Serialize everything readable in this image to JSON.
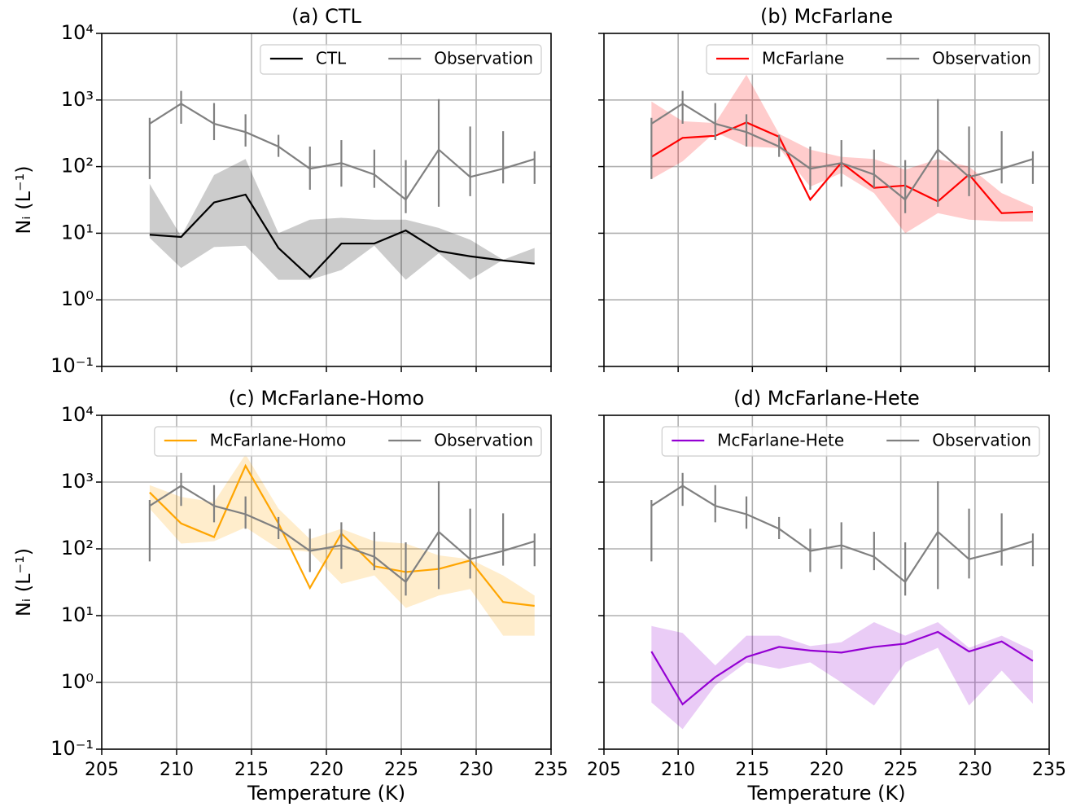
{
  "chart_data": [
    {
      "type": "line",
      "title": "(a) CTL",
      "ylabel": "Nᵢ (L⁻¹)",
      "yscale": "log",
      "grid": true,
      "legend": "upper right",
      "xtick_labels": false,
      "xlim": [
        205,
        235
      ],
      "xticks": [
        205,
        210,
        215,
        220,
        225,
        230,
        235
      ],
      "ylim": [
        0.1,
        10000
      ],
      "yticks": [
        {
          "value": 0.1,
          "label": "10⁻¹"
        },
        {
          "value": 1,
          "label": "10⁰"
        },
        {
          "value": 10,
          "label": "10¹"
        },
        {
          "value": 100,
          "label": "10²"
        },
        {
          "value": 1000,
          "label": "10³"
        },
        {
          "value": 10000,
          "label": "10⁴"
        }
      ],
      "x": [
        208.2,
        210.3,
        212.5,
        214.6,
        216.8,
        218.9,
        221.0,
        223.2,
        225.3,
        227.5,
        229.6,
        231.8,
        233.9
      ],
      "series": [
        {
          "name": "CTL",
          "color": "#000000",
          "style": "band",
          "band_opacity": 0.2,
          "values": [
            9.5,
            8.8,
            29,
            38,
            6,
            2.2,
            7,
            7,
            11,
            5.4,
            4.5,
            3.9,
            3.5
          ],
          "lower": [
            8.5,
            3,
            6.2,
            6.5,
            2,
            2,
            2.8,
            6.5,
            2,
            5,
            2,
            4,
            3.5
          ],
          "upper": [
            55,
            9,
            75,
            130,
            10,
            16,
            17,
            16,
            16,
            12,
            8,
            4,
            6
          ]
        },
        {
          "name": "Observation",
          "color": "#808080",
          "style": "errorbar",
          "values": [
            440,
            880,
            440,
            330,
            200,
            93,
            113,
            76,
            32,
            180,
            70,
            93,
            130
          ],
          "lower": [
            65,
            440,
            250,
            200,
            140,
            45,
            50,
            48,
            20,
            25,
            36,
            56,
            55
          ],
          "upper": [
            540,
            1370,
            900,
            610,
            300,
            200,
            250,
            180,
            125,
            1030,
            400,
            340,
            170
          ]
        }
      ]
    },
    {
      "type": "line",
      "title": "(b) McFarlane",
      "yscale": "log",
      "grid": true,
      "legend": "upper right",
      "xtick_labels": false,
      "xlim": [
        205,
        235
      ],
      "xticks": [
        205,
        210,
        215,
        220,
        225,
        230,
        235
      ],
      "ylim": [
        0.1,
        10000
      ],
      "yticks": [
        0.1,
        1,
        10,
        100,
        1000,
        10000
      ],
      "x": [
        208.2,
        210.3,
        212.5,
        214.6,
        216.8,
        218.9,
        221.0,
        223.2,
        225.3,
        227.5,
        229.6,
        231.8,
        233.9
      ],
      "series": [
        {
          "name": "McFarlane",
          "color": "#ff0000",
          "style": "band",
          "band_opacity": 0.2,
          "values": [
            140,
            270,
            290,
            460,
            280,
            32,
            115,
            48,
            52,
            30,
            76,
            20,
            21
          ],
          "lower": [
            65,
            120,
            330,
            200,
            190,
            50,
            80,
            40,
            10,
            20,
            16,
            15,
            15
          ],
          "upper": [
            950,
            480,
            450,
            2400,
            310,
            180,
            140,
            130,
            90,
            130,
            100,
            40,
            25
          ]
        },
        {
          "name": "Observation",
          "color": "#808080",
          "style": "errorbar",
          "values": [
            440,
            880,
            440,
            330,
            200,
            93,
            113,
            76,
            32,
            180,
            70,
            93,
            130
          ],
          "lower": [
            65,
            440,
            250,
            200,
            140,
            45,
            50,
            48,
            20,
            25,
            36,
            56,
            55
          ],
          "upper": [
            540,
            1370,
            900,
            610,
            300,
            200,
            250,
            180,
            125,
            1030,
            400,
            340,
            170
          ]
        }
      ]
    },
    {
      "type": "line",
      "title": "(c) McFarlane-Homo",
      "ylabel": "Nᵢ (L⁻¹)",
      "xlabel": "Temperature (K)",
      "yscale": "log",
      "grid": true,
      "legend": "upper right",
      "xtick_labels": true,
      "xlim": [
        205,
        235
      ],
      "xticks": [
        205,
        210,
        215,
        220,
        225,
        230,
        235
      ],
      "ylim": [
        0.1,
        10000
      ],
      "yticks": [
        {
          "value": 0.1,
          "label": "10⁻¹"
        },
        {
          "value": 1,
          "label": "10⁰"
        },
        {
          "value": 10,
          "label": "10¹"
        },
        {
          "value": 100,
          "label": "10²"
        },
        {
          "value": 1000,
          "label": "10³"
        },
        {
          "value": 10000,
          "label": "10⁴"
        }
      ],
      "x": [
        208.2,
        210.3,
        212.5,
        214.6,
        216.8,
        218.9,
        221.0,
        223.2,
        225.3,
        227.5,
        229.6,
        231.8,
        233.9
      ],
      "series": [
        {
          "name": "McFarlane-Homo",
          "color": "#ffa500",
          "style": "band",
          "band_opacity": 0.2,
          "values": [
            700,
            240,
            150,
            1750,
            240,
            26,
            170,
            55,
            45,
            50,
            67,
            16,
            14
          ],
          "lower": [
            400,
            120,
            130,
            210,
            100,
            90,
            30,
            40,
            13,
            20,
            25,
            5,
            5
          ],
          "upper": [
            900,
            600,
            500,
            2600,
            400,
            140,
            200,
            130,
            120,
            80,
            70,
            40,
            20
          ]
        },
        {
          "name": "Observation",
          "color": "#808080",
          "style": "errorbar",
          "values": [
            440,
            880,
            440,
            330,
            200,
            93,
            113,
            76,
            32,
            180,
            70,
            93,
            130
          ],
          "lower": [
            65,
            440,
            250,
            200,
            140,
            45,
            50,
            48,
            20,
            25,
            36,
            56,
            55
          ],
          "upper": [
            540,
            1370,
            900,
            610,
            300,
            200,
            250,
            180,
            125,
            1030,
            400,
            340,
            170
          ]
        }
      ]
    },
    {
      "type": "line",
      "title": "(d) McFarlane-Hete",
      "xlabel": "Temperature (K)",
      "yscale": "log",
      "grid": true,
      "legend": "upper right",
      "xtick_labels": true,
      "xlim": [
        205,
        235
      ],
      "xticks": [
        205,
        210,
        215,
        220,
        225,
        230,
        235
      ],
      "ylim": [
        0.1,
        10000
      ],
      "yticks": [
        0.1,
        1,
        10,
        100,
        1000,
        10000
      ],
      "x": [
        208.2,
        210.3,
        212.5,
        214.6,
        216.8,
        218.9,
        221.0,
        223.2,
        225.3,
        227.5,
        229.6,
        231.8,
        233.9
      ],
      "series": [
        {
          "name": "McFarlane-Hete",
          "color": "#9400d3",
          "style": "band",
          "band_opacity": 0.2,
          "values": [
            2.9,
            0.47,
            1.2,
            2.4,
            3.4,
            3.0,
            2.8,
            3.4,
            3.8,
            5.7,
            2.9,
            4.1,
            2.1
          ],
          "lower": [
            0.5,
            0.2,
            0.9,
            2,
            1.6,
            2,
            1,
            0.45,
            2,
            3.3,
            0.45,
            1.5,
            0.48
          ],
          "upper": [
            7,
            5.5,
            1.8,
            5,
            5,
            3.5,
            4,
            8,
            5,
            8,
            3.3,
            5,
            3
          ]
        },
        {
          "name": "Observation",
          "color": "#808080",
          "style": "errorbar",
          "values": [
            440,
            880,
            440,
            330,
            200,
            93,
            113,
            76,
            32,
            180,
            70,
            93,
            130
          ],
          "lower": [
            65,
            440,
            250,
            200,
            140,
            45,
            50,
            48,
            20,
            25,
            36,
            56,
            55
          ],
          "upper": [
            540,
            1370,
            900,
            610,
            300,
            200,
            250,
            180,
            125,
            1030,
            400,
            340,
            170
          ]
        }
      ]
    }
  ]
}
